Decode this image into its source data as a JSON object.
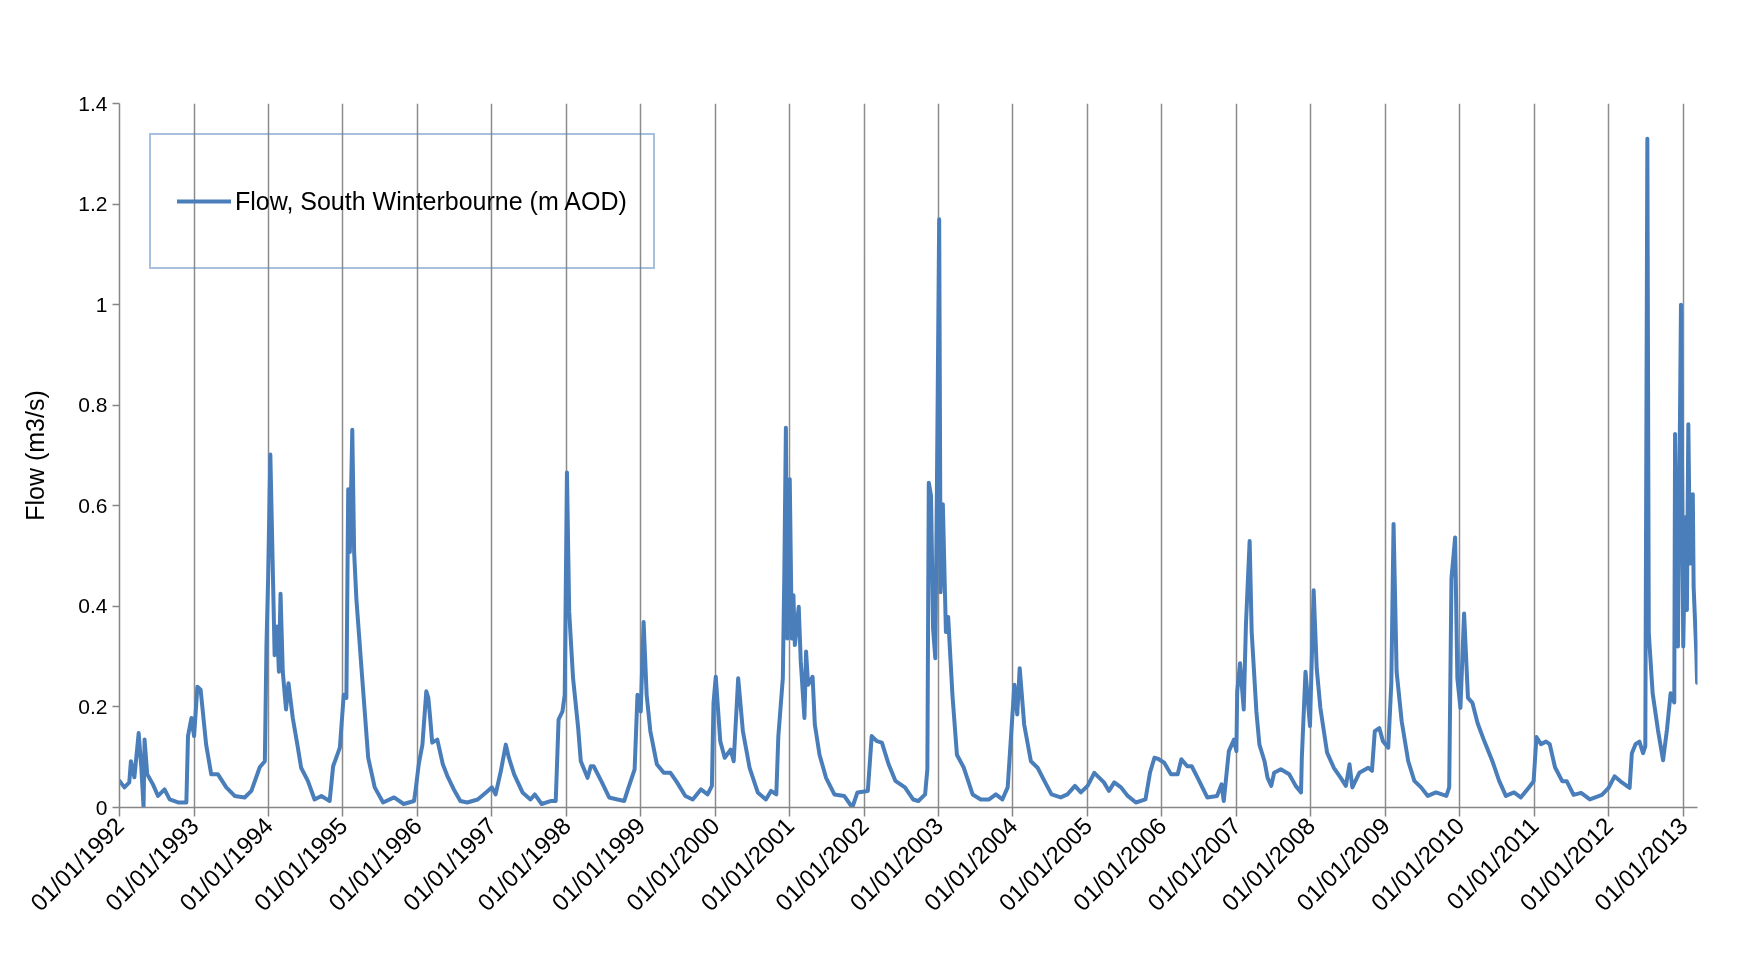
{
  "chart_data": {
    "type": "line",
    "ylabel": "Flow (m3/s)",
    "x": [
      "1992-01-01",
      "1992-01-25",
      "1992-02-18",
      "1992-02-26",
      "1992-03-14",
      "1992-04-04",
      "1992-04-17",
      "1992-04-28",
      "1992-05-03",
      "1992-05-16",
      "1992-06-13",
      "1992-07-08",
      "1992-08-09",
      "1992-09-03",
      "1992-10-14",
      "1992-11-24",
      "1992-12-02",
      "1992-12-19",
      "1993-01-01",
      "1993-01-17",
      "1993-02-02",
      "1993-03-01",
      "1993-03-26",
      "1993-04-28",
      "1993-06-08",
      "1993-07-19",
      "1993-09-06",
      "1993-10-09",
      "1993-11-19",
      "1993-12-14",
      "1993-12-22",
      "1993-12-30",
      "1994-01-10",
      "1994-01-23",
      "1994-01-31",
      "1994-02-12",
      "1994-02-21",
      "1994-03-01",
      "1994-03-12",
      "1994-03-28",
      "1994-04-09",
      "1994-04-30",
      "1994-05-25",
      "1994-06-10",
      "1994-07-13",
      "1994-08-15",
      "1994-09-17",
      "1994-10-28",
      "1994-11-14",
      "1994-12-17",
      "1995-01-05",
      "1995-01-18",
      "1995-01-27",
      "1995-02-04",
      "1995-02-16",
      "1995-02-25",
      "1995-03-08",
      "1995-04-02",
      "1995-05-05",
      "1995-06-06",
      "1995-07-17",
      "1995-09-09",
      "1995-10-26",
      "1995-12-16",
      "1995-12-24",
      "1996-01-08",
      "1996-01-26",
      "1996-02-14",
      "1996-02-24",
      "1996-03-04",
      "1996-03-14",
      "1996-04-08",
      "1996-05-05",
      "1996-05-27",
      "1996-06-28",
      "1996-07-30",
      "1996-09-02",
      "1996-10-23",
      "1996-12-03",
      "1997-01-01",
      "1997-01-19",
      "1997-02-14",
      "1997-03-10",
      "1997-03-25",
      "1997-04-20",
      "1997-05-31",
      "1997-07-09",
      "1997-07-30",
      "1997-09-02",
      "1997-10-19",
      "1997-11-10",
      "1997-11-24",
      "1997-12-13",
      "1997-12-24",
      "1998-01-04",
      "1998-01-15",
      "1998-02-03",
      "1998-02-28",
      "1998-03-13",
      "1998-04-15",
      "1998-05-01",
      "1998-05-15",
      "1998-06-21",
      "1998-07-30",
      "1998-09-09",
      "1998-10-12",
      "1998-10-30",
      "1998-12-02",
      "1998-12-16",
      "1999-01-01",
      "1999-01-15",
      "1999-01-30",
      "1999-02-17",
      "1999-03-21",
      "1999-04-24",
      "1999-05-27",
      "1999-06-28",
      "1999-08-08",
      "1999-09-13",
      "1999-10-23",
      "1999-11-25",
      "1999-12-16",
      "1999-12-24",
      "2000-01-04",
      "2000-01-26",
      "2000-02-17",
      "2000-03-17",
      "2000-04-01",
      "2000-04-23",
      "2000-05-16",
      "2000-06-18",
      "2000-07-28",
      "2000-09-06",
      "2000-10-01",
      "2000-10-27",
      "2000-11-06",
      "2000-11-28",
      "2000-12-05",
      "2000-12-13",
      "2000-12-20",
      "2001-01-01",
      "2001-01-11",
      "2001-01-19",
      "2001-01-26",
      "2001-02-14",
      "2001-02-24",
      "2001-03-14",
      "2001-03-22",
      "2001-04-01",
      "2001-04-23",
      "2001-05-04",
      "2001-05-27",
      "2001-06-28",
      "2001-08-08",
      "2001-09-25",
      "2001-11-04",
      "2001-11-29",
      "2002-01-19",
      "2002-02-07",
      "2002-03-04",
      "2002-03-29",
      "2002-05-01",
      "2002-06-03",
      "2002-07-20",
      "2002-08-29",
      "2002-09-24",
      "2002-10-27",
      "2002-11-07",
      "2002-11-14",
      "2002-11-25",
      "2002-12-05",
      "2002-12-16",
      "2002-12-24",
      "2003-01-04",
      "2003-01-11",
      "2003-01-22",
      "2003-02-06",
      "2003-02-17",
      "2003-03-10",
      "2003-04-01",
      "2003-05-05",
      "2003-06-17",
      "2003-07-27",
      "2003-09-06",
      "2003-10-09",
      "2003-11-10",
      "2003-12-06",
      "2004-01-08",
      "2004-01-22",
      "2004-02-03",
      "2004-02-25",
      "2004-03-29",
      "2004-05-01",
      "2004-06-03",
      "2004-07-08",
      "2004-08-22",
      "2004-09-24",
      "2004-10-31",
      "2004-11-29",
      "2005-01-01",
      "2005-02-03",
      "2005-03-22",
      "2005-04-16",
      "2005-05-12",
      "2005-06-14",
      "2005-07-17",
      "2005-08-26",
      "2005-10-12",
      "2005-11-03",
      "2005-11-25",
      "2005-12-16",
      "2006-01-12",
      "2006-02-14",
      "2006-03-19",
      "2006-04-06",
      "2006-05-05",
      "2006-05-27",
      "2006-06-25",
      "2006-08-11",
      "2006-09-28",
      "2006-10-20",
      "2006-10-31",
      "2006-11-25",
      "2006-12-20",
      "2007-01-01",
      "2007-01-05",
      "2007-01-19",
      "2007-02-06",
      "2007-02-17",
      "2007-03-07",
      "2007-03-17",
      "2007-04-09",
      "2007-04-24",
      "2007-05-19",
      "2007-06-03",
      "2007-06-21",
      "2007-07-05",
      "2007-08-07",
      "2007-09-17",
      "2007-10-19",
      "2007-11-14",
      "2007-11-18",
      "2007-12-06",
      "2007-12-28",
      "2008-01-15",
      "2008-01-30",
      "2008-02-17",
      "2008-03-21",
      "2008-04-23",
      "2008-05-27",
      "2008-06-21",
      "2008-07-09",
      "2008-07-23",
      "2008-08-26",
      "2008-10-09",
      "2008-10-27",
      "2008-11-10",
      "2008-12-02",
      "2008-12-20",
      "2009-01-15",
      "2009-01-30",
      "2009-02-10",
      "2009-02-25",
      "2009-03-22",
      "2009-04-23",
      "2009-05-23",
      "2009-06-25",
      "2009-07-28",
      "2009-09-06",
      "2009-10-27",
      "2009-11-10",
      "2009-11-21",
      "2009-12-09",
      "2009-12-20",
      "2010-01-04",
      "2010-01-22",
      "2010-02-10",
      "2010-03-04",
      "2010-03-29",
      "2010-05-01",
      "2010-06-10",
      "2010-07-13",
      "2010-08-15",
      "2010-09-24",
      "2010-10-27",
      "2010-12-06",
      "2010-12-29",
      "2011-01-12",
      "2011-02-03",
      "2011-02-28",
      "2011-03-18",
      "2011-04-13",
      "2011-05-19",
      "2011-06-10",
      "2011-07-13",
      "2011-08-19",
      "2011-10-01",
      "2011-11-29",
      "2012-01-01",
      "2012-01-30",
      "2012-02-28",
      "2012-04-13",
      "2012-04-24",
      "2012-05-12",
      "2012-05-31",
      "2012-06-18",
      "2012-06-29",
      "2012-07-09",
      "2012-07-16",
      "2012-08-04",
      "2012-08-30",
      "2012-09-24",
      "2012-10-13",
      "2012-10-31",
      "2012-11-18",
      "2012-11-22",
      "2012-12-06",
      "2012-12-21",
      "2013-01-01",
      "2013-01-12",
      "2013-01-19",
      "2013-01-26",
      "2013-02-03",
      "2013-02-17",
      "2013-02-21",
      "2013-03-06",
      "2013-03-10"
    ],
    "series": [
      {
        "name": "Flow, South Winterbourne (m AOD)",
        "color": "#4a7ebb",
        "values": [
          0.053,
          0.04,
          0.05,
          0.092,
          0.06,
          0.148,
          0.08,
          0,
          0.135,
          0.066,
          0.046,
          0.023,
          0.036,
          0.016,
          0.01,
          0.01,
          0.142,
          0.178,
          0.142,
          0.24,
          0.234,
          0.125,
          0.066,
          0.066,
          0.04,
          0.023,
          0.02,
          0.033,
          0.08,
          0.092,
          0.323,
          0.455,
          0.702,
          0.455,
          0.303,
          0.36,
          0.27,
          0.425,
          0.27,
          0.195,
          0.247,
          0.178,
          0.119,
          0.079,
          0.053,
          0.016,
          0.023,
          0.013,
          0.082,
          0.119,
          0.224,
          0.218,
          0.633,
          0.508,
          0.751,
          0.508,
          0.415,
          0.277,
          0.099,
          0.04,
          0.01,
          0.02,
          0.007,
          0.013,
          0.036,
          0.086,
          0.125,
          0.231,
          0.218,
          0.178,
          0.129,
          0.135,
          0.086,
          0.063,
          0.036,
          0.013,
          0.01,
          0.016,
          0.03,
          0.04,
          0.026,
          0.073,
          0.125,
          0.099,
          0.066,
          0.03,
          0.016,
          0.026,
          0.007,
          0.013,
          0.013,
          0.175,
          0.191,
          0.224,
          0.666,
          0.389,
          0.257,
          0.158,
          0.092,
          0.059,
          0.082,
          0.082,
          0.053,
          0.02,
          0.016,
          0.013,
          0.036,
          0.076,
          0.224,
          0.191,
          0.369,
          0.224,
          0.152,
          0.086,
          0.069,
          0.069,
          0.05,
          0.023,
          0.016,
          0.036,
          0.026,
          0.043,
          0.208,
          0.26,
          0.132,
          0.099,
          0.115,
          0.092,
          0.257,
          0.152,
          0.079,
          0.03,
          0.016,
          0.033,
          0.026,
          0.142,
          0.257,
          0.455,
          0.755,
          0.336,
          0.653,
          0.336,
          0.422,
          0.323,
          0.399,
          0.29,
          0.178,
          0.31,
          0.244,
          0.26,
          0.165,
          0.105,
          0.059,
          0.026,
          0.023,
          0,
          0.03,
          0.033,
          0.142,
          0.132,
          0.129,
          0.086,
          0.053,
          0.04,
          0.016,
          0.013,
          0.026,
          0.076,
          0.646,
          0.62,
          0.356,
          0.297,
          0.64,
          1.17,
          0.428,
          0.603,
          0.349,
          0.379,
          0.224,
          0.105,
          0.079,
          0.026,
          0.016,
          0.016,
          0.026,
          0.016,
          0.04,
          0.244,
          0.185,
          0.277,
          0.165,
          0.092,
          0.079,
          0.053,
          0.026,
          0.02,
          0.026,
          0.043,
          0.03,
          0.043,
          0.069,
          0.05,
          0.033,
          0.05,
          0.04,
          0.023,
          0.01,
          0.016,
          0.069,
          0.099,
          0.096,
          0.089,
          0.066,
          0.066,
          0.096,
          0.082,
          0.082,
          0.059,
          0.02,
          0.023,
          0.046,
          0.013,
          0.112,
          0.135,
          0.112,
          0.231,
          0.287,
          0.195,
          0.366,
          0.53,
          0.349,
          0.191,
          0.125,
          0.092,
          0.059,
          0.043,
          0.069,
          0.076,
          0.066,
          0.043,
          0.03,
          0.099,
          0.27,
          0.162,
          0.432,
          0.277,
          0.198,
          0.109,
          0.079,
          0.059,
          0.043,
          0.086,
          0.04,
          0.069,
          0.079,
          0.073,
          0.152,
          0.158,
          0.132,
          0.119,
          0.247,
          0.564,
          0.27,
          0.171,
          0.092,
          0.053,
          0.04,
          0.023,
          0.03,
          0.023,
          0.04,
          0.455,
          0.537,
          0.257,
          0.198,
          0.386,
          0.218,
          0.208,
          0.168,
          0.132,
          0.092,
          0.053,
          0.023,
          0.03,
          0.02,
          0.04,
          0.052,
          0.14,
          0.126,
          0.131,
          0.126,
          0.08,
          0.052,
          0.052,
          0.025,
          0.029,
          0.016,
          0.025,
          0.039,
          0.062,
          0.052,
          0.039,
          0.108,
          0.126,
          0.131,
          0.108,
          0.122,
          1.33,
          0.347,
          0.227,
          0.154,
          0.094,
          0.154,
          0.227,
          0.209,
          0.743,
          0.32,
          1.0,
          0.32,
          0.577,
          0.393,
          0.762,
          0.485,
          0.623,
          0.439,
          0.31,
          0.248
        ]
      }
    ],
    "xlim": [
      "1992-01-01",
      "2013-03-12"
    ],
    "xticks": [
      {
        "value": "1992-01-01",
        "label": "01/01/1992"
      },
      {
        "value": "1993-01-01",
        "label": "01/01/1993"
      },
      {
        "value": "1994-01-01",
        "label": "01/01/1994"
      },
      {
        "value": "1995-01-01",
        "label": "01/01/1995"
      },
      {
        "value": "1996-01-01",
        "label": "01/01/1996"
      },
      {
        "value": "1997-01-01",
        "label": "01/01/1997"
      },
      {
        "value": "1998-01-01",
        "label": "01/01/1998"
      },
      {
        "value": "1999-01-01",
        "label": "01/01/1999"
      },
      {
        "value": "2000-01-01",
        "label": "01/01/2000"
      },
      {
        "value": "2001-01-01",
        "label": "01/01/2001"
      },
      {
        "value": "2002-01-01",
        "label": "01/01/2002"
      },
      {
        "value": "2003-01-01",
        "label": "01/01/2003"
      },
      {
        "value": "2004-01-01",
        "label": "01/01/2004"
      },
      {
        "value": "2005-01-01",
        "label": "01/01/2005"
      },
      {
        "value": "2006-01-01",
        "label": "01/01/2006"
      },
      {
        "value": "2007-01-01",
        "label": "01/01/2007"
      },
      {
        "value": "2008-01-01",
        "label": "01/01/2008"
      },
      {
        "value": "2009-01-01",
        "label": "01/01/2009"
      },
      {
        "value": "2010-01-01",
        "label": "01/01/2010"
      },
      {
        "value": "2011-01-01",
        "label": "01/01/2011"
      },
      {
        "value": "2012-01-01",
        "label": "01/01/2012"
      },
      {
        "value": "2013-01-01",
        "label": "01/01/2013"
      }
    ],
    "ylim": [
      0,
      1.4
    ],
    "yticks": [
      0,
      0.2,
      0.4,
      0.6,
      0.8,
      1,
      1.2,
      1.4
    ],
    "grid": "x",
    "legend": "top left",
    "line_style": "solid"
  }
}
